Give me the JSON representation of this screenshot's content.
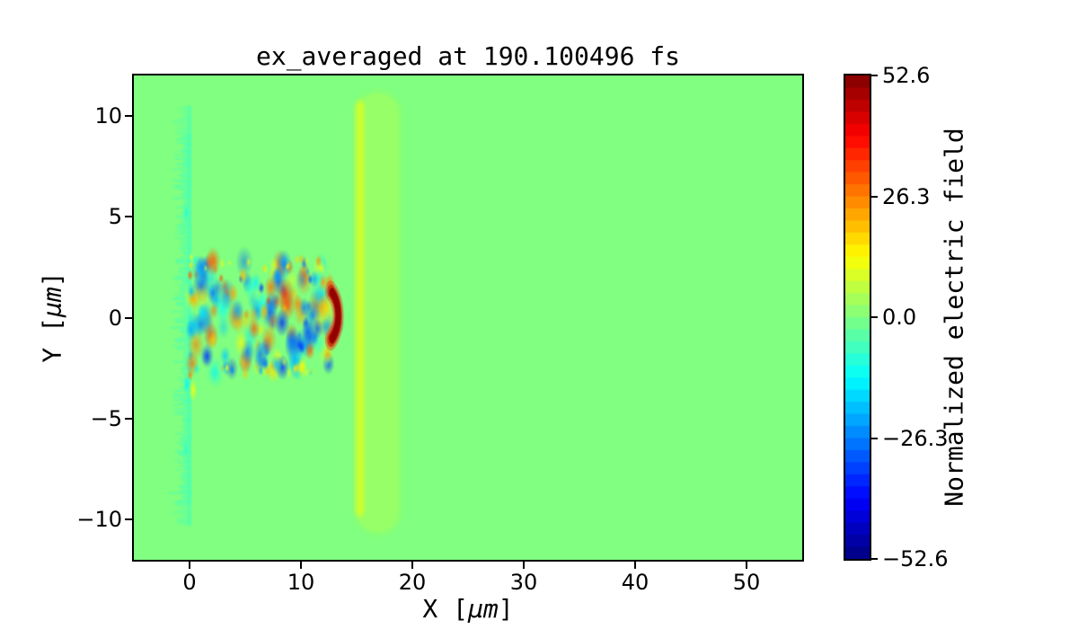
{
  "figure": {
    "background": "#ffffff",
    "spine_color": "#000000",
    "text_color": "#000000"
  },
  "chart_data": {
    "type": "heatmap",
    "title": "ex_averaged at 190.100496 fs",
    "xlabel": "X [μm]",
    "xlabel_parts": {
      "pre": "X [",
      "unit": "μm",
      "post": "]"
    },
    "ylabel": "Y [μm]",
    "ylabel_parts": {
      "pre": "Y [",
      "unit": "μm",
      "post": "]"
    },
    "xlim": [
      -5,
      55
    ],
    "ylim": [
      -12,
      12
    ],
    "grid": false,
    "colormap": "jet",
    "xticks": [
      {
        "value": 0,
        "label": "0"
      },
      {
        "value": 10,
        "label": "10"
      },
      {
        "value": 20,
        "label": "20"
      },
      {
        "value": 30,
        "label": "30"
      },
      {
        "value": 40,
        "label": "40"
      },
      {
        "value": 50,
        "label": "50"
      }
    ],
    "yticks": [
      {
        "value": 10,
        "label": "10"
      },
      {
        "value": 5,
        "label": "5"
      },
      {
        "value": 0,
        "label": "0"
      },
      {
        "value": -5,
        "label": "−5"
      },
      {
        "value": -10,
        "label": "−10"
      }
    ],
    "colorbar": {
      "label": "Normalized electric field",
      "vmin": -52.6,
      "vmax": 52.6,
      "levels": 40,
      "ticks": [
        {
          "value": 52.6,
          "label": "52.6"
        },
        {
          "value": 26.3,
          "label": "26.3"
        },
        {
          "value": 0,
          "label": "0.0"
        },
        {
          "value": -26.3,
          "label": "−26.3"
        },
        {
          "value": -52.6,
          "label": "−52.6"
        }
      ]
    },
    "field": {
      "background_value": 0,
      "plasma_stripe": {
        "x_right": 0.15,
        "x_core": -0.25,
        "jag_max": 1.3,
        "y_top": 10.5,
        "y_bottom": -10.3,
        "value": -5,
        "core_value": -9,
        "seed": 99
      },
      "ionization_band": {
        "x_center": 16.9,
        "half_width": 1.85,
        "y_top": 11.1,
        "y_bottom": -10.6,
        "value": 3.5,
        "edge_line": {
          "x": 15.3,
          "half_width": 0.2,
          "y_top": 10.6,
          "y_bottom": -9.7,
          "value": 8.5
        }
      },
      "turbulence": {
        "x_min": 0.1,
        "x_max": 13.3,
        "y_half": 2.9,
        "count": 150,
        "r_min": 0.22,
        "r_max": 0.8,
        "v_min": 8,
        "v_max": 36,
        "edge_dot_count": 30,
        "seed": 12345
      },
      "hot_patches": [
        {
          "x": 8.6,
          "y": 1.15,
          "r": 0.85,
          "v": 34
        },
        {
          "x": 7.3,
          "y": 1.5,
          "r": 0.6,
          "v": 28
        },
        {
          "x": 9.7,
          "y": 0.7,
          "r": 0.5,
          "v": 26
        },
        {
          "x": 5.8,
          "y": -0.55,
          "r": 0.55,
          "v": 30
        },
        {
          "x": 3.9,
          "y": 1.2,
          "r": 0.5,
          "v": 22
        },
        {
          "x": 6.7,
          "y": 0.3,
          "r": 0.45,
          "v": 20
        },
        {
          "x": 12.0,
          "y": 1.75,
          "r": 0.4,
          "v": 24
        },
        {
          "x": 10.8,
          "y": -1.65,
          "r": 0.45,
          "v": 30
        },
        {
          "x": 12.4,
          "y": -1.85,
          "r": 0.45,
          "v": 22
        },
        {
          "x": 2.1,
          "y": -1.1,
          "r": 0.45,
          "v": 18
        },
        {
          "x": 4.8,
          "y": 2.1,
          "r": 0.4,
          "v": 20
        }
      ],
      "cold_patches": [
        {
          "x": 8.3,
          "y": -0.25,
          "r": 0.7,
          "v": -36
        },
        {
          "x": 9.3,
          "y": -1.2,
          "r": 0.75,
          "v": -28
        },
        {
          "x": 6.4,
          "y": -1.8,
          "r": 0.65,
          "v": -26
        },
        {
          "x": 10.6,
          "y": -0.7,
          "r": 0.6,
          "v": -30
        },
        {
          "x": 11.5,
          "y": -0.55,
          "r": 0.5,
          "v": -30
        },
        {
          "x": 10.3,
          "y": 0.5,
          "r": 0.5,
          "v": -26
        },
        {
          "x": 4.3,
          "y": 0.35,
          "r": 0.6,
          "v": -22
        },
        {
          "x": 2.4,
          "y": 0.9,
          "r": 0.5,
          "v": -20
        },
        {
          "x": 11.2,
          "y": 1.9,
          "r": 0.45,
          "v": -22
        },
        {
          "x": 7.8,
          "y": -2.3,
          "r": 0.5,
          "v": -20
        },
        {
          "x": 3.2,
          "y": -1.9,
          "r": 0.5,
          "v": -18
        },
        {
          "x": 1.2,
          "y": 0.2,
          "r": 0.5,
          "v": -16
        }
      ],
      "spots": [
        {
          "x": 0.05,
          "y": 2.1,
          "r": 0.28,
          "v": 30,
          "ry": 1
        },
        {
          "x": 0.1,
          "y": 2.6,
          "r": 0.22,
          "v": 16,
          "ry": 1
        },
        {
          "x": 0.05,
          "y": -2.85,
          "r": 0.28,
          "v": 26,
          "ry": 1
        },
        {
          "x": 0.3,
          "y": -3.6,
          "r": 0.35,
          "v": 13,
          "ry": 1.6
        },
        {
          "x": -0.25,
          "y": -3.3,
          "r": 0.3,
          "v": -14,
          "ry": 1.5
        },
        {
          "x": 0.15,
          "y": 3.0,
          "r": 0.2,
          "v": 12,
          "ry": 1
        },
        {
          "x": -0.3,
          "y": 5.2,
          "r": 0.25,
          "v": -10,
          "ry": 2
        },
        {
          "x": -0.35,
          "y": -6.5,
          "r": 0.25,
          "v": -9,
          "ry": 2
        }
      ],
      "laser_crescent": {
        "cx": 11.9,
        "cy": 0.1,
        "radius": 1.45,
        "arc_deg": 58,
        "width": 0.5,
        "value": 51
      }
    }
  }
}
